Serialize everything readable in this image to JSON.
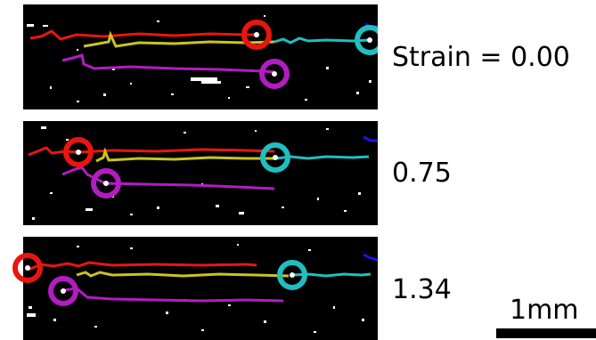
{
  "panels": [
    {
      "strain_label": "Strain = 0.00"
    },
    {
      "strain_label": "0.75"
    },
    {
      "strain_label": "1.34"
    }
  ],
  "scale_bar": {
    "label": "1mm"
  },
  "colors": {
    "background": "#000000",
    "red": "#e8160f",
    "yellow": "#c9c421",
    "magenta": "#b21cc1",
    "cyan": "#1fbfc0",
    "blue": "#1a14e6",
    "debris": "#ffffff"
  }
}
